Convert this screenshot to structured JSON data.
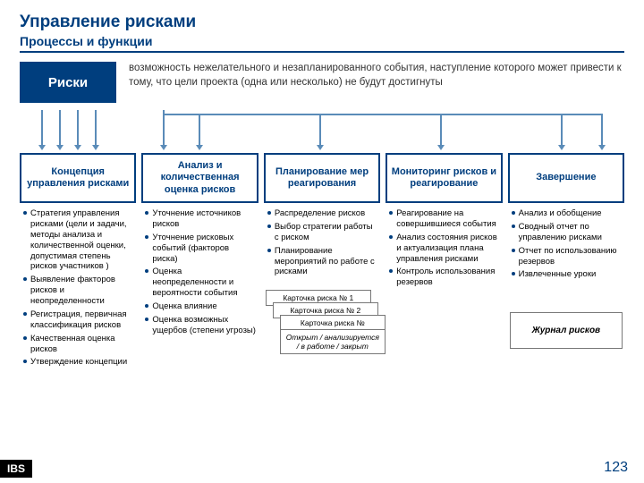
{
  "title": "Управление рисками",
  "subtitle": "Процессы и функции",
  "riskLabel": "Риски",
  "description": "возможность нежелательного и незапланированного события, наступление которого может привести к тому, что цели проекта (одна или несколько) не будут достигнуты",
  "columns": [
    {
      "head": "Концепция управления рисками",
      "items": [
        "Стратегия управления рисками (цели и задачи, методы анализа и количественной оценки, допустимая степень рисков участников )",
        "Выявление факторов рисков и неопределенности",
        "Регистрация, первичная классификация рисков",
        "Качественная оценка рисков",
        "Утверждение концепции"
      ]
    },
    {
      "head": "Анализ и количественная оценка рисков",
      "items": [
        "Уточнение источников рисков",
        "Уточнение рисковых событий (факторов риска)",
        "Оценка неопределенности и вероятности события",
        "Оценка влияние",
        "Оценка возможных ущербов (степени угрозы)"
      ]
    },
    {
      "head": "Планирование мер реагирования",
      "items": [
        "Распределение рисков",
        "Выбор стратегии работы с риском",
        "Планирование мероприятий по работе с рисками"
      ],
      "cards": [
        "Карточка риска № 1",
        "Карточка риска № 2",
        "Карточка риска №",
        "Открыт / анализируется / в работе / закрыт"
      ]
    },
    {
      "head": "Мониторинг рисков и реагирование",
      "items": [
        "Реагирование на совершившиеся события",
        "Анализ состояния рисков и актуализация плана управления рисками",
        "Контроль использования резервов"
      ]
    },
    {
      "head": "Завершение",
      "items": [
        "Анализ и обобщение",
        "Сводный отчет по управлению рисками",
        "Отчет по использованию резервов",
        "Извлеченные уроки"
      ],
      "journal": "Журнал рисков"
    }
  ],
  "logo": "IBS",
  "pageNum": "123",
  "colors": {
    "brand": "#003e7e",
    "arrow": "#5a8bb8"
  }
}
